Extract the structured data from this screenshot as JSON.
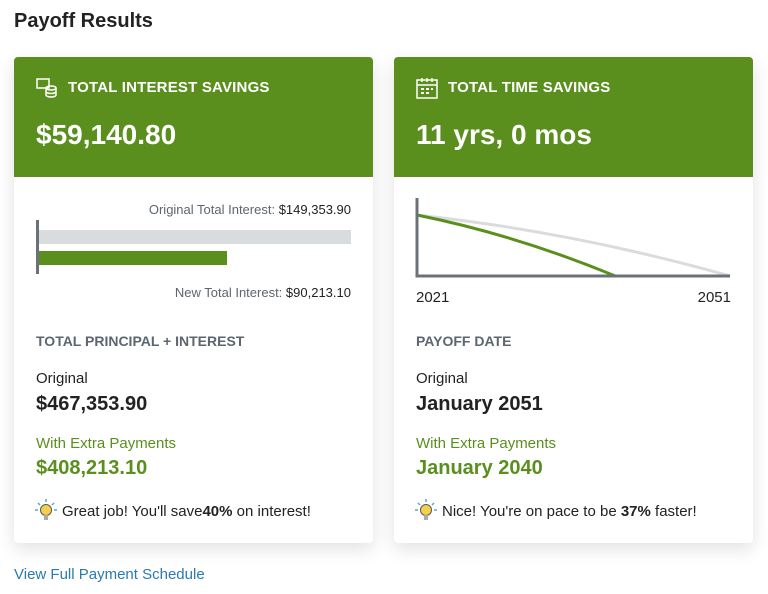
{
  "title": "Payoff Results",
  "colors": {
    "accent": "#5a8f1e",
    "bar_original": "#d9dcdf",
    "axis": "#6b7178",
    "link": "#2a7ab0"
  },
  "interest_card": {
    "icon": "money-stack-icon",
    "heading": "TOTAL INTEREST SAVINGS",
    "amount": "$59,140.80",
    "original_label": "Original Total Interest:",
    "original_value": "$149,353.90",
    "new_label": "New Total Interest:",
    "new_value": "$90,213.10",
    "original_interest": 149353.9,
    "new_interest": 90213.1,
    "section_heading": "TOTAL PRINCIPAL + INTEREST",
    "original_caption": "Original",
    "original_total": "$467,353.90",
    "extra_caption": "With Extra Payments",
    "extra_total": "$408,213.10",
    "tip_icon": "lightbulb-icon",
    "tip_prefix": "Great job! You'll save",
    "tip_bold": "40%",
    "tip_suffix": " on interest!"
  },
  "time_card": {
    "icon": "calendar-icon",
    "heading": "TOTAL TIME SAVINGS",
    "amount": "11 yrs, 0 mos",
    "chart_start": "2021",
    "chart_end": "2051",
    "original_payoff_year": 2051,
    "new_payoff_year": 2040,
    "section_heading": "PAYOFF DATE",
    "original_caption": "Original",
    "original_date": "January 2051",
    "extra_caption": "With Extra Payments",
    "extra_date": "January 2040",
    "tip_icon": "lightbulb-icon",
    "tip_prefix": "Nice! You're on pace to be ",
    "tip_bold": "37%",
    "tip_suffix": " faster!"
  },
  "link": "View Full Payment Schedule"
}
